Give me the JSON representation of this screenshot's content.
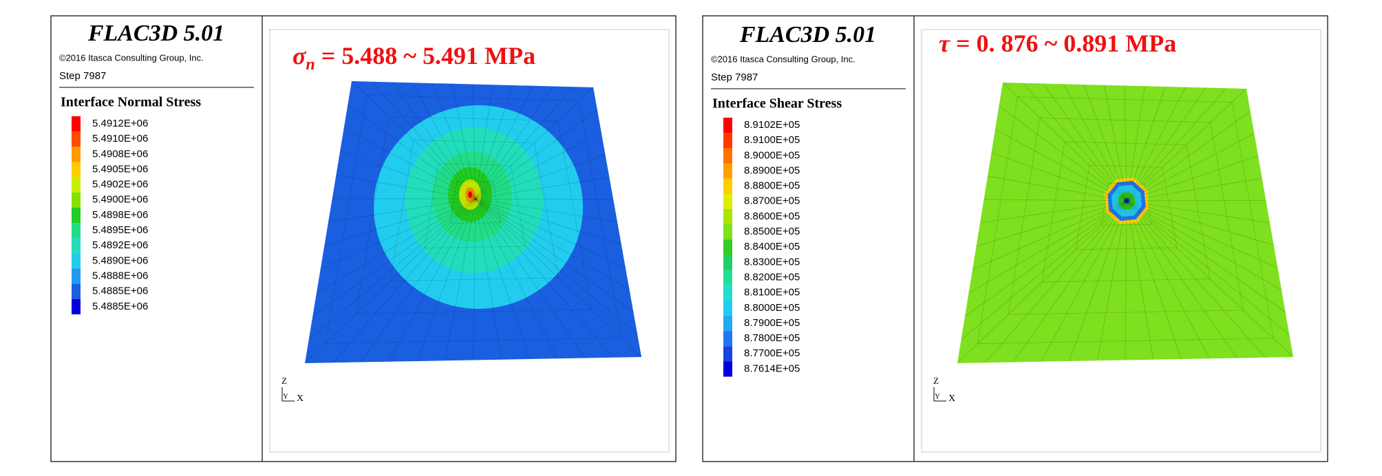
{
  "panels": [
    {
      "header": {
        "title": "FLAC3D 5.01",
        "copyright": "©2016 Itasca Consulting Group, Inc.",
        "step": "Step 7987"
      },
      "legend": {
        "title": "Interface Normal Stress",
        "items": [
          {
            "label": "5.4912E+06",
            "color": "#ff0000"
          },
          {
            "label": "5.4910E+06",
            "color": "#ff4a00"
          },
          {
            "label": "5.4908E+06",
            "color": "#ff9a00"
          },
          {
            "label": "5.4905E+06",
            "color": "#ffcc00"
          },
          {
            "label": "5.4902E+06",
            "color": "#ccee00"
          },
          {
            "label": "5.4900E+06",
            "color": "#88e000"
          },
          {
            "label": "5.4898E+06",
            "color": "#22cc22"
          },
          {
            "label": "5.4895E+06",
            "color": "#22dd88"
          },
          {
            "label": "5.4892E+06",
            "color": "#22ddbb"
          },
          {
            "label": "5.4890E+06",
            "color": "#22ccee"
          },
          {
            "label": "5.4888E+06",
            "color": "#2299ee"
          },
          {
            "label": "5.4885E+06",
            "color": "#1a5fe0"
          },
          {
            "label": "5.4885E+06",
            "color": "#0000dd"
          }
        ]
      },
      "plot": {
        "symbol": "σ",
        "subscript": "n",
        "text": " = 5.488 ~ 5.491 MPa"
      },
      "axes": {
        "z": "Z",
        "y": "Y",
        "x": "X"
      }
    },
    {
      "header": {
        "title": "FLAC3D 5.01",
        "copyright": "©2016 Itasca Consulting Group, Inc.",
        "step": "Step 7987"
      },
      "legend": {
        "title": "Interface Shear Stress",
        "items": [
          {
            "label": "8.9102E+05",
            "color": "#ff0000"
          },
          {
            "label": "8.9100E+05",
            "color": "#ff3a00"
          },
          {
            "label": "8.9000E+05",
            "color": "#ff7000"
          },
          {
            "label": "8.8900E+05",
            "color": "#ffa000"
          },
          {
            "label": "8.8800E+05",
            "color": "#ffcc00"
          },
          {
            "label": "8.8700E+05",
            "color": "#ddee00"
          },
          {
            "label": "8.8600E+05",
            "color": "#aae400"
          },
          {
            "label": "8.8500E+05",
            "color": "#7ee01e"
          },
          {
            "label": "8.8400E+05",
            "color": "#33cc22"
          },
          {
            "label": "8.8300E+05",
            "color": "#22cc66"
          },
          {
            "label": "8.8200E+05",
            "color": "#22dd99"
          },
          {
            "label": "8.8100E+05",
            "color": "#22ddcc"
          },
          {
            "label": "8.8000E+05",
            "color": "#22ccee"
          },
          {
            "label": "8.7900E+05",
            "color": "#22aaee"
          },
          {
            "label": "8.7800E+05",
            "color": "#2277ee"
          },
          {
            "label": "8.7700E+05",
            "color": "#1a44e0"
          },
          {
            "label": "8.7614E+05",
            "color": "#0000dd"
          }
        ]
      },
      "plot": {
        "symbol": "τ",
        "text": " = 0. 876 ~ 0.891 MPa"
      },
      "axes": {
        "z": "Z",
        "y": "Y",
        "x": "X"
      }
    }
  ]
}
